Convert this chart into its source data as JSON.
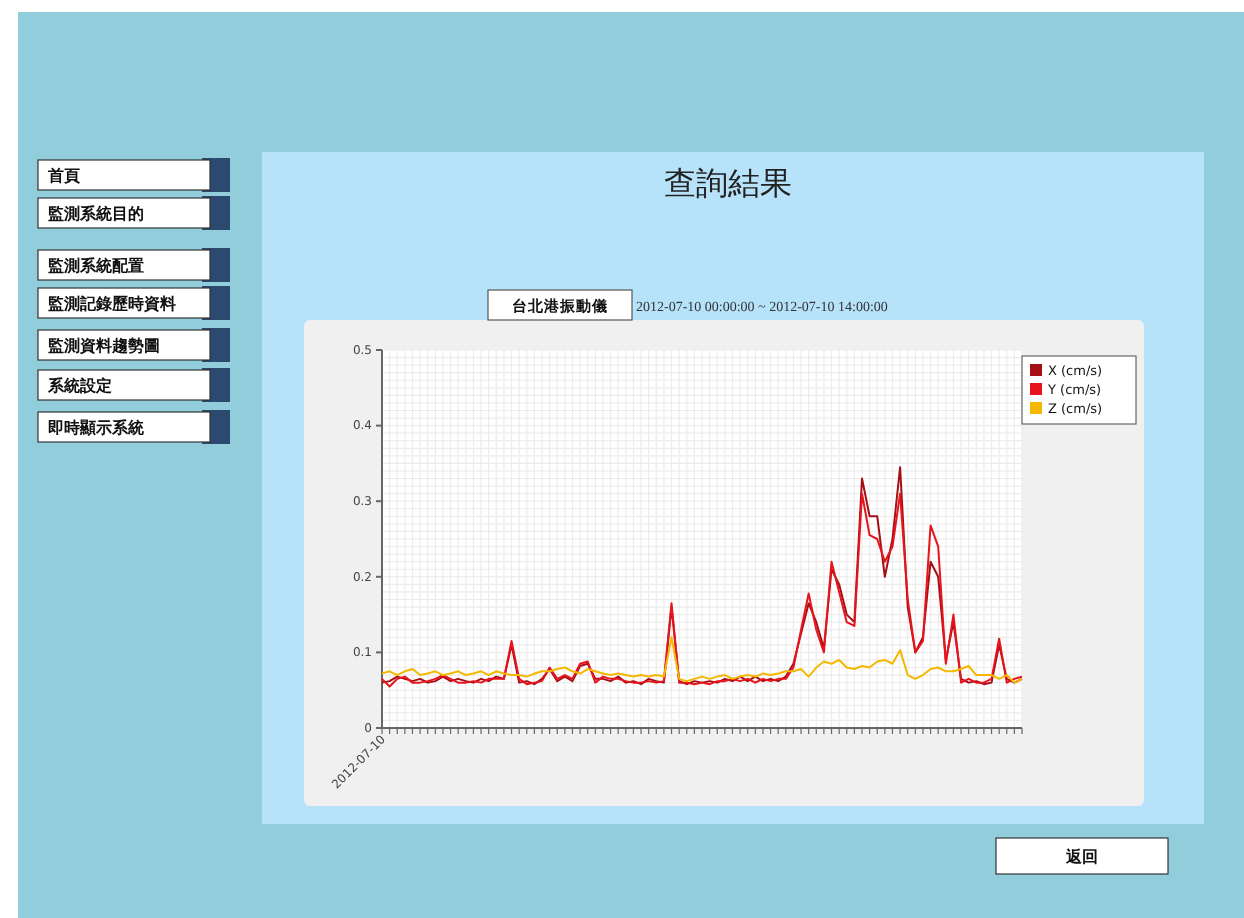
{
  "chart_data": {
    "type": "line",
    "title": "查詢結果",
    "subtitle": "2012-07-10 00:00:00 ~ 2012-07-10 14:00:00",
    "annotations": [
      "台北港振動儀",
      "首頁",
      "監測系統目的",
      "監測系統配置",
      "監測記錄歷時資料",
      "監測資料趨勢圖",
      "系統設定",
      "即時顯示系統",
      "返回"
    ],
    "categories": [
      "2012-07-10",
      null,
      null,
      null,
      null,
      null,
      null,
      null,
      null,
      null,
      null,
      null,
      null,
      null,
      null,
      null,
      null,
      null,
      null,
      null,
      null,
      null,
      null,
      null,
      null,
      null,
      null,
      null,
      null,
      null,
      null,
      null,
      null,
      null,
      null,
      null,
      null,
      null,
      null,
      null,
      null,
      null,
      null,
      null,
      null,
      null,
      null,
      null,
      null,
      null,
      null,
      null,
      null,
      null,
      null,
      null,
      null,
      null,
      null,
      null,
      null,
      null,
      null,
      null,
      null,
      null,
      null,
      null,
      null,
      null,
      null,
      null,
      null,
      null,
      null,
      null,
      null,
      null,
      null,
      null,
      null,
      null,
      null,
      null,
      null
    ],
    "ylim": [
      0,
      0.5
    ],
    "yticks": [
      0,
      0.1,
      0.2,
      0.3,
      0.4,
      0.5
    ],
    "grid": true,
    "legend": "top right",
    "line_style": "solid",
    "series": [
      {
        "name": "X (cm/s)",
        "color": "#a50f15",
        "values": [
          0.06,
          0.062,
          0.068,
          0.065,
          0.062,
          0.065,
          0.06,
          0.062,
          0.068,
          0.062,
          0.065,
          0.062,
          0.06,
          0.065,
          0.062,
          0.068,
          0.065,
          0.11,
          0.06,
          0.062,
          0.058,
          0.065,
          0.078,
          0.062,
          0.068,
          0.062,
          0.082,
          0.085,
          0.065,
          0.065,
          0.062,
          0.068,
          0.06,
          0.062,
          0.058,
          0.065,
          0.062,
          0.06,
          0.16,
          0.062,
          0.058,
          0.062,
          0.06,
          0.062,
          0.06,
          0.065,
          0.062,
          0.068,
          0.062,
          0.068,
          0.062,
          0.065,
          0.062,
          0.068,
          0.085,
          0.125,
          0.165,
          0.14,
          0.105,
          0.21,
          0.19,
          0.15,
          0.14,
          0.33,
          0.28,
          0.28,
          0.2,
          0.25,
          0.345,
          0.16,
          0.1,
          0.12,
          0.22,
          0.2,
          0.09,
          0.14,
          0.065,
          0.06,
          0.062,
          0.058,
          0.06,
          0.11,
          0.065,
          0.06,
          0.065
        ]
      },
      {
        "name": "Y (cm/s)",
        "color": "#e8141c",
        "values": [
          0.065,
          0.055,
          0.065,
          0.068,
          0.06,
          0.06,
          0.062,
          0.065,
          0.07,
          0.065,
          0.06,
          0.06,
          0.062,
          0.06,
          0.065,
          0.065,
          0.065,
          0.115,
          0.065,
          0.058,
          0.06,
          0.062,
          0.08,
          0.065,
          0.07,
          0.065,
          0.085,
          0.088,
          0.06,
          0.068,
          0.065,
          0.065,
          0.062,
          0.06,
          0.06,
          0.062,
          0.06,
          0.062,
          0.165,
          0.06,
          0.06,
          0.058,
          0.06,
          0.058,
          0.062,
          0.062,
          0.065,
          0.062,
          0.065,
          0.06,
          0.065,
          0.062,
          0.065,
          0.065,
          0.08,
          0.13,
          0.178,
          0.13,
          0.1,
          0.22,
          0.18,
          0.14,
          0.135,
          0.31,
          0.255,
          0.25,
          0.22,
          0.24,
          0.31,
          0.17,
          0.1,
          0.115,
          0.268,
          0.24,
          0.085,
          0.15,
          0.06,
          0.065,
          0.06,
          0.06,
          0.065,
          0.118,
          0.06,
          0.065,
          0.068
        ]
      },
      {
        "name": "Z (cm/s)",
        "color": "#f5b800",
        "values": [
          0.072,
          0.075,
          0.07,
          0.075,
          0.078,
          0.07,
          0.072,
          0.075,
          0.07,
          0.072,
          0.075,
          0.07,
          0.072,
          0.075,
          0.07,
          0.075,
          0.072,
          0.07,
          0.07,
          0.068,
          0.072,
          0.075,
          0.075,
          0.078,
          0.08,
          0.075,
          0.072,
          0.078,
          0.075,
          0.072,
          0.07,
          0.072,
          0.07,
          0.068,
          0.07,
          0.068,
          0.07,
          0.068,
          0.12,
          0.065,
          0.062,
          0.065,
          0.068,
          0.065,
          0.068,
          0.07,
          0.065,
          0.068,
          0.07,
          0.068,
          0.072,
          0.07,
          0.072,
          0.075,
          0.075,
          0.078,
          0.068,
          0.08,
          0.088,
          0.085,
          0.09,
          0.08,
          0.078,
          0.082,
          0.08,
          0.088,
          0.09,
          0.085,
          0.103,
          0.07,
          0.065,
          0.07,
          0.078,
          0.08,
          0.075,
          0.075,
          0.078,
          0.082,
          0.07,
          0.07,
          0.07,
          0.065,
          0.07,
          0.06,
          0.065
        ]
      }
    ]
  }
}
